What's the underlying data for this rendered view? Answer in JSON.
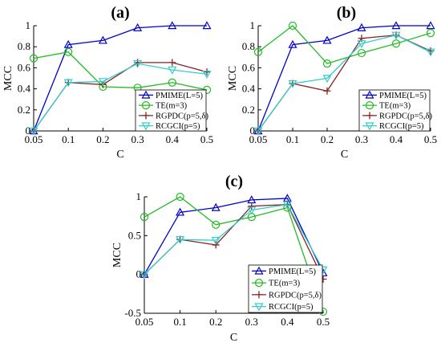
{
  "chart_data": [
    {
      "type": "line",
      "panel_label": "(a)",
      "xlabel": "C",
      "ylabel": "MCC",
      "x": [
        0.05,
        0.1,
        0.2,
        0.3,
        0.4,
        0.5
      ],
      "xticks": [
        "0.05",
        "0.1",
        "0.2",
        "0.3",
        "0.4",
        "0.5"
      ],
      "yticks": [
        "0",
        "0.2",
        "0.4",
        "0.6",
        "0.8",
        "1"
      ],
      "ylim": [
        0,
        1
      ],
      "legend_position": "bottom-right",
      "series": [
        {
          "name": "PMIME(L=5)",
          "color": "#0000cc",
          "marker": "triangle",
          "values": [
            0,
            0.82,
            0.86,
            0.98,
            1.0,
            1.0
          ]
        },
        {
          "name": "TE(m=3)",
          "color": "#22bb22",
          "marker": "circle",
          "values": [
            0.69,
            0.75,
            0.42,
            0.41,
            0.46,
            0.39
          ]
        },
        {
          "name": "RGPDC(p=5,δ)",
          "color": "#882222",
          "marker": "plus",
          "values": [
            0,
            0.46,
            0.44,
            0.65,
            0.65,
            0.56
          ]
        },
        {
          "name": "RCGCI(p=5)",
          "color": "#33cccc",
          "marker": "triangle-down",
          "values": [
            0,
            0.46,
            0.47,
            0.64,
            0.58,
            0.54
          ]
        }
      ]
    },
    {
      "type": "line",
      "panel_label": "(b)",
      "xlabel": "C",
      "ylabel": "MCC",
      "x": [
        0.05,
        0.1,
        0.2,
        0.3,
        0.4,
        0.5
      ],
      "xticks": [
        "0.05",
        "0.1",
        "0.2",
        "0.3",
        "0.4",
        "0.5"
      ],
      "yticks": [
        "0",
        "0.2",
        "0.4",
        "0.6",
        "0.8",
        "1"
      ],
      "ylim": [
        0,
        1
      ],
      "legend_position": "bottom-right",
      "series": [
        {
          "name": "PMIME(L=5)",
          "color": "#0000cc",
          "marker": "triangle",
          "values": [
            0,
            0.82,
            0.86,
            0.98,
            1.0,
            1.0
          ]
        },
        {
          "name": "TE(m=3)",
          "color": "#22bb22",
          "marker": "circle",
          "values": [
            0.75,
            1.0,
            0.64,
            0.74,
            0.83,
            0.93
          ]
        },
        {
          "name": "RGPDC(p=5,δ)",
          "color": "#882222",
          "marker": "plus",
          "values": [
            0,
            0.45,
            0.38,
            0.88,
            0.91,
            0.76
          ]
        },
        {
          "name": "RCGCI(p=5)",
          "color": "#33cccc",
          "marker": "triangle-down",
          "values": [
            0,
            0.45,
            0.5,
            0.83,
            0.91,
            0.75
          ]
        }
      ]
    },
    {
      "type": "line",
      "panel_label": "(c)",
      "xlabel": "C",
      "ylabel": "MCC",
      "x": [
        0.05,
        0.1,
        0.2,
        0.3,
        0.4,
        0.5
      ],
      "xticks": [
        "0.05",
        "0.1",
        "0.2",
        "0.3",
        "0.4",
        "0.5"
      ],
      "yticks": [
        "-0.5",
        "0",
        "0.5",
        "1"
      ],
      "ylim": [
        -0.5,
        1
      ],
      "legend_position": "bottom-right",
      "series": [
        {
          "name": "PMIME(L=5)",
          "color": "#0000cc",
          "marker": "triangle",
          "values": [
            0,
            0.8,
            0.86,
            0.96,
            0.98,
            0.02
          ]
        },
        {
          "name": "TE(m=3)",
          "color": "#22bb22",
          "marker": "circle",
          "values": [
            0.74,
            1.0,
            0.64,
            0.74,
            0.86,
            -0.48
          ]
        },
        {
          "name": "RGPDC(p=5,δ)",
          "color": "#882222",
          "marker": "plus",
          "values": [
            0,
            0.45,
            0.38,
            0.88,
            0.9,
            -0.06
          ]
        },
        {
          "name": "RCGCI(p=5)",
          "color": "#33cccc",
          "marker": "triangle-down",
          "values": [
            0,
            0.45,
            0.44,
            0.83,
            0.9,
            0.06
          ]
        }
      ]
    }
  ]
}
